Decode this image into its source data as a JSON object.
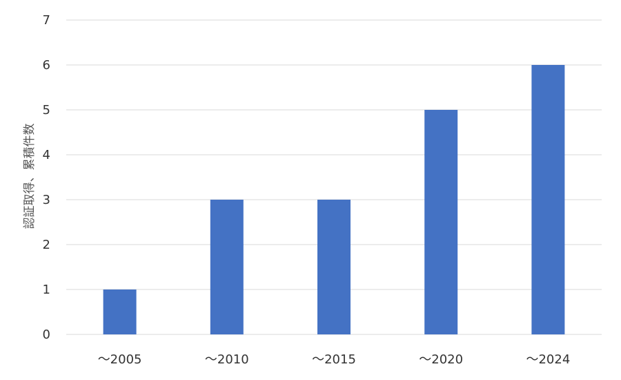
{
  "chart_data": {
    "type": "bar",
    "title": "",
    "xlabel": "",
    "ylabel": "認証取得、累積件数",
    "categories": [
      "～2005",
      "～2010",
      "～2015",
      "～2020",
      "～2024"
    ],
    "values": [
      1,
      3,
      3,
      5,
      6
    ],
    "ylim": [
      0,
      7
    ],
    "yticks": [
      0,
      1,
      2,
      3,
      4,
      5,
      6,
      7
    ],
    "grid": true,
    "legend": "none",
    "bar_color": "#4472C4",
    "grid_color": "#D9D9D9"
  }
}
